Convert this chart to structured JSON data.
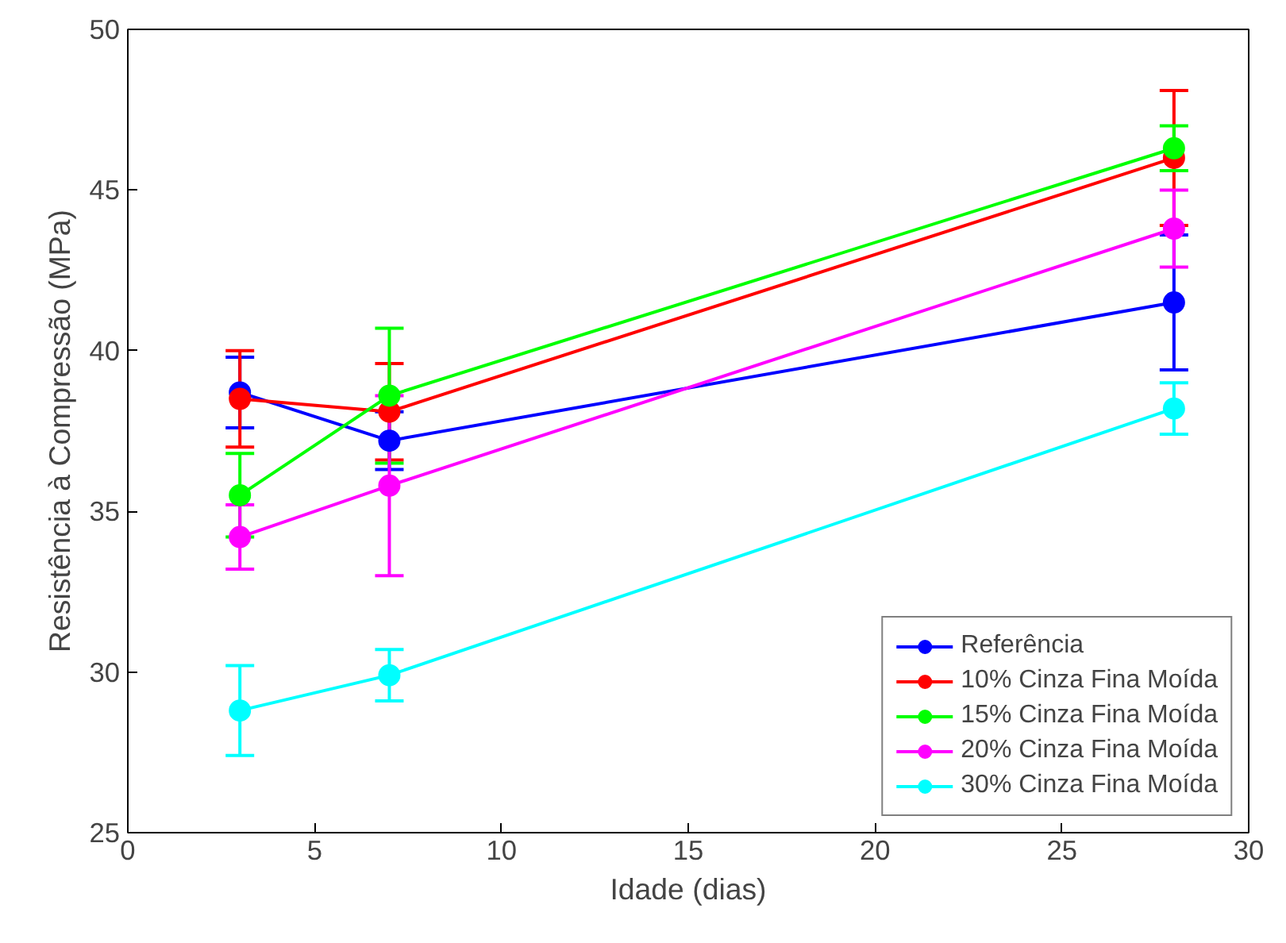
{
  "chart_data": {
    "type": "line",
    "xlabel": "Idade (dias)",
    "ylabel": "Resistência à Compressão (MPa)",
    "x": [
      3,
      7,
      28
    ],
    "xlim": [
      0,
      30
    ],
    "xticks": [
      0,
      5,
      10,
      15,
      20,
      25,
      30
    ],
    "ylim": [
      25,
      50
    ],
    "yticks": [
      25,
      30,
      35,
      40,
      45,
      50
    ],
    "grid": false,
    "legend": "bottom right",
    "marker": "circle",
    "line_style": "solid",
    "series": [
      {
        "name": "Referência",
        "color": "#0000ff",
        "values": [
          38.7,
          37.2,
          41.5
        ],
        "errors": [
          1.1,
          0.9,
          2.1
        ]
      },
      {
        "name": "10% Cinza Fina Moída",
        "color": "#ff0000",
        "values": [
          38.5,
          38.1,
          46.0
        ],
        "errors": [
          1.5,
          1.5,
          2.1
        ]
      },
      {
        "name": "15% Cinza Fina Moída",
        "color": "#00ff00",
        "values": [
          35.5,
          38.6,
          46.3
        ],
        "errors": [
          1.3,
          2.1,
          0.7
        ]
      },
      {
        "name": "20% Cinza Fina Moída",
        "color": "#ff00ff",
        "values": [
          34.2,
          35.8,
          43.8
        ],
        "errors": [
          1.0,
          2.8,
          1.2
        ]
      },
      {
        "name": "30% Cinza Fina Moída",
        "color": "#00ffff",
        "values": [
          28.8,
          29.9,
          38.2
        ],
        "errors": [
          1.4,
          0.8,
          0.8
        ]
      }
    ]
  }
}
